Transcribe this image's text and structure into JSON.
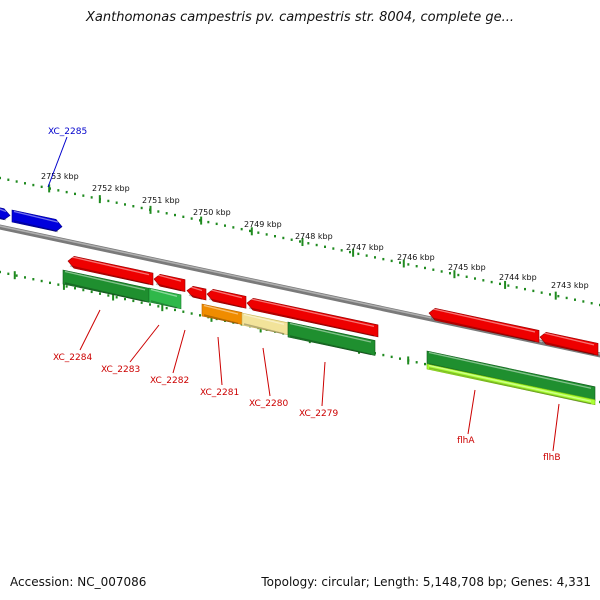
{
  "title": "Xanthomonas campestris pv. campestris str. 8004, complete ge...",
  "footer": {
    "accession": "Accession: NC_007086",
    "topology": "Topology: circular; Length: 5,148,708 bp; Genes: 4,331"
  },
  "ruler": [
    {
      "label": "2753 kbp"
    },
    {
      "label": "2752 kbp"
    },
    {
      "label": "2751 kbp"
    },
    {
      "label": "2750 kbp"
    },
    {
      "label": "2749 kbp"
    },
    {
      "label": "2748 kbp"
    },
    {
      "label": "2747 kbp"
    },
    {
      "label": "2746 kbp"
    },
    {
      "label": "2745 kbp"
    },
    {
      "label": "2744 kbp"
    },
    {
      "label": "2743 kbp"
    }
  ],
  "gene_labels": [
    {
      "id": "XC_2285",
      "text": "XC_2285",
      "color": "#0000cc"
    },
    {
      "id": "XC_2284",
      "text": "XC_2284",
      "color": "#cc0000"
    },
    {
      "id": "XC_2283",
      "text": "XC_2283",
      "color": "#cc0000"
    },
    {
      "id": "XC_2282",
      "text": "XC_2282",
      "color": "#cc0000"
    },
    {
      "id": "XC_2281",
      "text": "XC_2281",
      "color": "#cc0000"
    },
    {
      "id": "XC_2280",
      "text": "XC_2280",
      "color": "#cc0000"
    },
    {
      "id": "XC_2279",
      "text": "XC_2279",
      "color": "#cc0000"
    },
    {
      "id": "flhA",
      "text": "flhA",
      "color": "#cc0000"
    },
    {
      "id": "flhB",
      "text": "flhB",
      "color": "#cc0000"
    }
  ],
  "colors": {
    "backbone": "#8a8a8a",
    "ruler": "#1f8a1f",
    "gene_red": "#ee0000",
    "gene_blue": "#0000dd",
    "cds_dark_green": "#1f8f2f",
    "cds_green": "#2fb84a",
    "cds_orange": "#f08c00",
    "cds_pale_yellow": "#f2e39a",
    "cds_lime": "#aaff33"
  }
}
